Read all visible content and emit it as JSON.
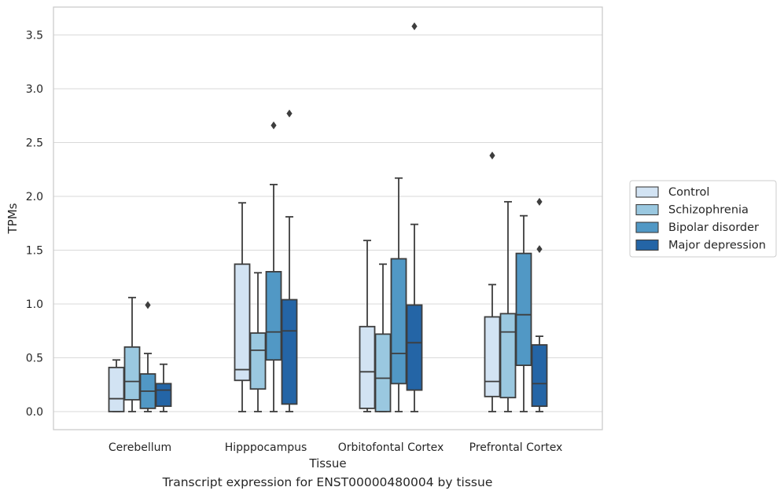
{
  "caption": "Transcript expression for ENST00000480004 by tissue",
  "chart_data": {
    "type": "box",
    "xlabel": "Tissue",
    "ylabel": "TPMs",
    "ylim": [
      -0.17,
      3.77
    ],
    "yticks": [
      0.0,
      0.5,
      1.0,
      1.5,
      2.0,
      2.5,
      3.0,
      3.5
    ],
    "ytick_labels": [
      "0.0",
      "0.5",
      "1.0",
      "1.5",
      "2.0",
      "2.5",
      "3.0",
      "3.5"
    ],
    "grid": "horizontal",
    "legend_position": "right",
    "categories": [
      "Cerebellum",
      "Hipppocampus",
      "Orbitofontal Cortex",
      "Prefrontal Cortex"
    ],
    "series": [
      {
        "name": "Control",
        "color": "#d2e3f3",
        "boxes": [
          {
            "whislo": 0.0,
            "q1": 0.0,
            "med": 0.12,
            "q3": 0.41,
            "whishi": 0.48,
            "fliers": []
          },
          {
            "whislo": 0.0,
            "q1": 0.29,
            "med": 0.39,
            "q3": 1.37,
            "whishi": 1.94,
            "fliers": []
          },
          {
            "whislo": 0.0,
            "q1": 0.03,
            "med": 0.37,
            "q3": 0.79,
            "whishi": 1.59,
            "fliers": []
          },
          {
            "whislo": 0.0,
            "q1": 0.14,
            "med": 0.28,
            "q3": 0.88,
            "whishi": 1.18,
            "fliers": [
              2.38
            ]
          }
        ]
      },
      {
        "name": "Schizophrenia",
        "color": "#9ac8e0",
        "boxes": [
          {
            "whislo": 0.0,
            "q1": 0.11,
            "med": 0.28,
            "q3": 0.6,
            "whishi": 1.06,
            "fliers": []
          },
          {
            "whislo": 0.0,
            "q1": 0.21,
            "med": 0.57,
            "q3": 0.73,
            "whishi": 1.29,
            "fliers": []
          },
          {
            "whislo": 0.0,
            "q1": 0.0,
            "med": 0.31,
            "q3": 0.72,
            "whishi": 1.37,
            "fliers": []
          },
          {
            "whislo": 0.0,
            "q1": 0.13,
            "med": 0.74,
            "q3": 0.91,
            "whishi": 1.95,
            "fliers": []
          }
        ]
      },
      {
        "name": "Bipolar disorder",
        "color": "#5198c5",
        "boxes": [
          {
            "whislo": 0.0,
            "q1": 0.03,
            "med": 0.19,
            "q3": 0.35,
            "whishi": 0.54,
            "fliers": [
              0.99
            ]
          },
          {
            "whislo": 0.0,
            "q1": 0.48,
            "med": 0.74,
            "q3": 1.3,
            "whishi": 2.11,
            "fliers": [
              2.66
            ]
          },
          {
            "whislo": 0.0,
            "q1": 0.26,
            "med": 0.54,
            "q3": 1.42,
            "whishi": 2.17,
            "fliers": []
          },
          {
            "whislo": 0.0,
            "q1": 0.43,
            "med": 0.9,
            "q3": 1.47,
            "whishi": 1.82,
            "fliers": []
          }
        ]
      },
      {
        "name": "Major depression",
        "color": "#2465a6",
        "boxes": [
          {
            "whislo": 0.0,
            "q1": 0.05,
            "med": 0.2,
            "q3": 0.26,
            "whishi": 0.44,
            "fliers": []
          },
          {
            "whislo": 0.0,
            "q1": 0.07,
            "med": 0.75,
            "q3": 1.04,
            "whishi": 1.81,
            "fliers": [
              2.77
            ]
          },
          {
            "whislo": 0.0,
            "q1": 0.2,
            "med": 0.64,
            "q3": 0.99,
            "whishi": 1.74,
            "fliers": [
              3.58
            ]
          },
          {
            "whislo": 0.0,
            "q1": 0.05,
            "med": 0.26,
            "q3": 0.62,
            "whishi": 0.7,
            "fliers": [
              1.51,
              1.95
            ]
          }
        ]
      }
    ]
  }
}
